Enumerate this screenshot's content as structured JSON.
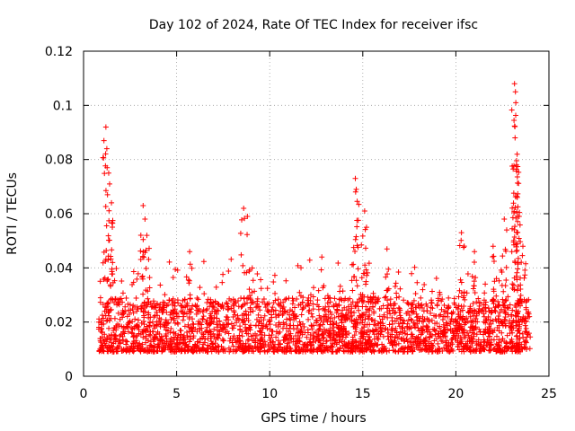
{
  "chart_data": {
    "type": "scatter",
    "title": "Day 102 of 2024, Rate Of TEC Index for receiver ifsc",
    "xlabel": "GPS time / hours",
    "ylabel": "ROTI / TECUs",
    "xlim": [
      0,
      25
    ],
    "ylim": [
      0,
      0.12
    ],
    "grid": true,
    "marker": "+",
    "color": "#ff0000",
    "x_ticks": [
      {
        "value": 0,
        "label": "0"
      },
      {
        "value": 5,
        "label": "5"
      },
      {
        "value": 10,
        "label": "10"
      },
      {
        "value": 15,
        "label": "15"
      },
      {
        "value": 20,
        "label": "20"
      },
      {
        "value": 25,
        "label": "25"
      }
    ],
    "y_ticks": [
      {
        "value": 0,
        "label": "0"
      },
      {
        "value": 0.02,
        "label": "0.02"
      },
      {
        "value": 0.04,
        "label": "0.04"
      },
      {
        "value": 0.06,
        "label": "0.06"
      },
      {
        "value": 0.08,
        "label": "0.08"
      },
      {
        "value": 0.1,
        "label": "0.1"
      },
      {
        "value": 0.12,
        "label": "0.12"
      }
    ],
    "series": [
      {
        "name": "ROTI",
        "x_range": [
          0.8,
          24.0
        ],
        "baseline_band": [
          0.005,
          0.025
        ],
        "peaks": [
          {
            "x": 1.2,
            "y": 0.092
          },
          {
            "x": 1.25,
            "y": 0.084
          },
          {
            "x": 1.35,
            "y": 0.075
          },
          {
            "x": 1.4,
            "y": 0.071
          },
          {
            "x": 1.5,
            "y": 0.064
          },
          {
            "x": 3.2,
            "y": 0.063
          },
          {
            "x": 3.3,
            "y": 0.058
          },
          {
            "x": 3.4,
            "y": 0.052
          },
          {
            "x": 5.7,
            "y": 0.046
          },
          {
            "x": 8.6,
            "y": 0.062
          },
          {
            "x": 8.8,
            "y": 0.059
          },
          {
            "x": 12.8,
            "y": 0.044
          },
          {
            "x": 14.6,
            "y": 0.073
          },
          {
            "x": 14.65,
            "y": 0.069
          },
          {
            "x": 15.1,
            "y": 0.061
          },
          {
            "x": 15.2,
            "y": 0.055
          },
          {
            "x": 16.3,
            "y": 0.047
          },
          {
            "x": 20.3,
            "y": 0.053
          },
          {
            "x": 21.0,
            "y": 0.046
          },
          {
            "x": 22.0,
            "y": 0.048
          },
          {
            "x": 22.6,
            "y": 0.058
          },
          {
            "x": 23.15,
            "y": 0.108
          },
          {
            "x": 23.2,
            "y": 0.105
          },
          {
            "x": 23.22,
            "y": 0.101
          },
          {
            "x": 23.18,
            "y": 0.088
          },
          {
            "x": 23.25,
            "y": 0.078
          },
          {
            "x": 23.3,
            "y": 0.066
          },
          {
            "x": 23.4,
            "y": 0.059
          },
          {
            "x": 23.6,
            "y": 0.048
          }
        ]
      }
    ]
  }
}
